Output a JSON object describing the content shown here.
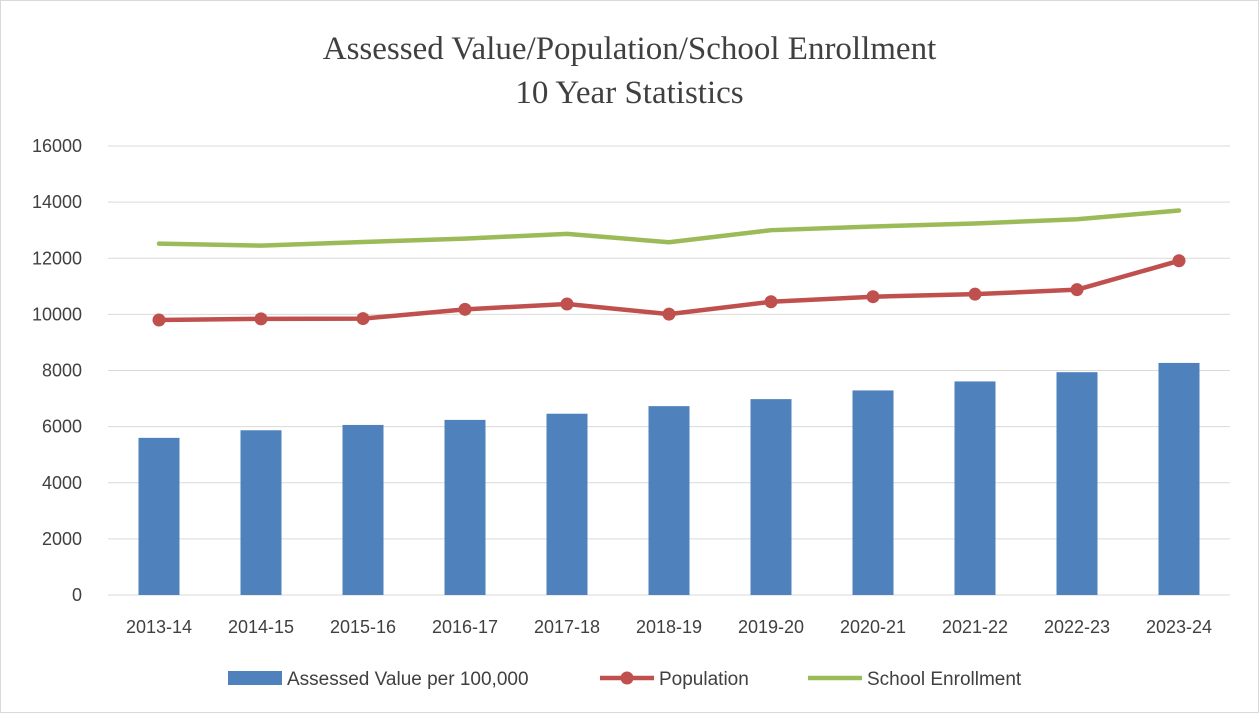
{
  "chart_data": {
    "type": "bar",
    "title_line1": "Assessed Value/Population/School Enrollment",
    "title_line2": "10 Year Statistics",
    "categories": [
      "2013-14",
      "2014-15",
      "2015-16",
      "2016-17",
      "2017-18",
      "2018-19",
      "2019-20",
      "2020-21",
      "2021-22",
      "2022-23",
      "2023-24"
    ],
    "ylim": [
      0,
      16000
    ],
    "yticks": [
      0,
      2000,
      4000,
      6000,
      8000,
      10000,
      12000,
      14000,
      16000
    ],
    "grid": true,
    "legend_position": "bottom",
    "series": [
      {
        "name": "Assessed Value per 100,000",
        "type": "bar",
        "color": "#4f81bd",
        "values": [
          5600,
          5870,
          6060,
          6240,
          6460,
          6730,
          6980,
          7290,
          7610,
          7940,
          8270
        ]
      },
      {
        "name": "Population",
        "type": "line",
        "marker": "circle",
        "color": "#c0504d",
        "values": [
          9800,
          9840,
          9850,
          10180,
          10370,
          10010,
          10450,
          10630,
          10720,
          10880,
          11910
        ]
      },
      {
        "name": "School Enrollment",
        "type": "line",
        "color": "#9bbb59",
        "values": [
          12520,
          12450,
          12580,
          12700,
          12870,
          12570,
          13000,
          13130,
          13240,
          13390,
          13700
        ]
      }
    ]
  }
}
